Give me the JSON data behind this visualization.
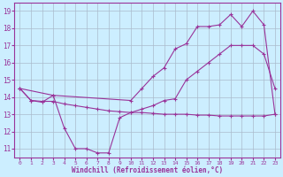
{
  "xlabel": "Windchill (Refroidissement éolien,°C)",
  "bg_color": "#cceeff",
  "grid_color": "#aabbcc",
  "line_color": "#993399",
  "xmin": -0.5,
  "xmax": 23.5,
  "ymin": 10.5,
  "ymax": 19.5,
  "yticks": [
    11,
    12,
    13,
    14,
    15,
    16,
    17,
    18,
    19
  ],
  "xticks": [
    0,
    1,
    2,
    3,
    4,
    5,
    6,
    7,
    8,
    9,
    10,
    11,
    12,
    13,
    14,
    15,
    16,
    17,
    18,
    19,
    20,
    21,
    22,
    23
  ],
  "line1_x": [
    0,
    1,
    2,
    3,
    4,
    5,
    6,
    7,
    8,
    9,
    10,
    11,
    12,
    13,
    14,
    15,
    16,
    17,
    18,
    19,
    20,
    21,
    22,
    23
  ],
  "line1_y": [
    14.5,
    13.8,
    13.75,
    13.75,
    13.6,
    13.5,
    13.4,
    13.3,
    13.2,
    13.15,
    13.1,
    13.1,
    13.05,
    13.0,
    13.0,
    13.0,
    12.95,
    12.95,
    12.9,
    12.9,
    12.9,
    12.9,
    12.9,
    13.0
  ],
  "line2_x": [
    0,
    1,
    2,
    3,
    4,
    5,
    6,
    7,
    8,
    9,
    10,
    11,
    12,
    13,
    14,
    15,
    16,
    17,
    18,
    19,
    20,
    21,
    22,
    23
  ],
  "line2_y": [
    14.5,
    13.8,
    13.7,
    14.1,
    12.2,
    11.0,
    11.0,
    10.75,
    10.75,
    12.8,
    13.1,
    13.3,
    13.5,
    13.8,
    13.9,
    15.0,
    15.5,
    16.0,
    16.5,
    17.0,
    17.0,
    17.0,
    16.5,
    14.5
  ],
  "line3_x": [
    0,
    3,
    10,
    11,
    12,
    13,
    14,
    15,
    16,
    17,
    18,
    19,
    20,
    21,
    22,
    23
  ],
  "line3_y": [
    14.5,
    14.1,
    13.8,
    14.5,
    15.2,
    15.7,
    16.8,
    17.1,
    18.1,
    18.1,
    18.2,
    18.8,
    18.1,
    19.0,
    18.2,
    13.0
  ]
}
